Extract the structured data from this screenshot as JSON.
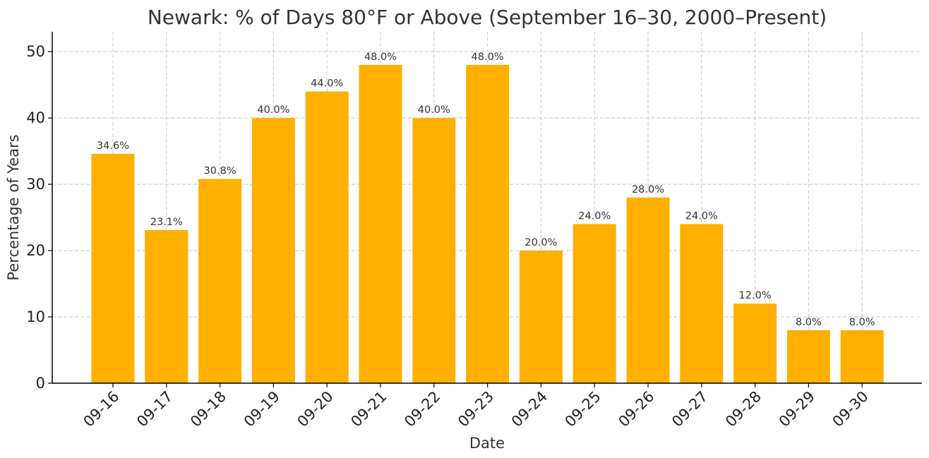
{
  "chart_data": {
    "type": "bar",
    "title": "Newark: % of Days 80°F or Above (September 16–30, 2000–Present)",
    "xlabel": "Date",
    "ylabel": "Percentage of Years",
    "categories": [
      "09-16",
      "09-17",
      "09-18",
      "09-19",
      "09-20",
      "09-21",
      "09-22",
      "09-23",
      "09-24",
      "09-25",
      "09-26",
      "09-27",
      "09-28",
      "09-29",
      "09-30"
    ],
    "values": [
      34.6,
      23.1,
      30.8,
      40.0,
      44.0,
      48.0,
      40.0,
      48.0,
      20.0,
      24.0,
      28.0,
      24.0,
      12.0,
      8.0,
      8.0
    ],
    "data_labels": [
      "34.6%",
      "23.1%",
      "30.8%",
      "40.0%",
      "44.0%",
      "48.0%",
      "40.0%",
      "48.0%",
      "20.0%",
      "24.0%",
      "28.0%",
      "24.0%",
      "12.0%",
      "8.0%",
      "8.0%"
    ],
    "yticks": [
      0,
      10,
      20,
      30,
      40,
      50
    ],
    "ylim": [
      0,
      53
    ],
    "grid": true,
    "bar_color": "#FFB000"
  }
}
